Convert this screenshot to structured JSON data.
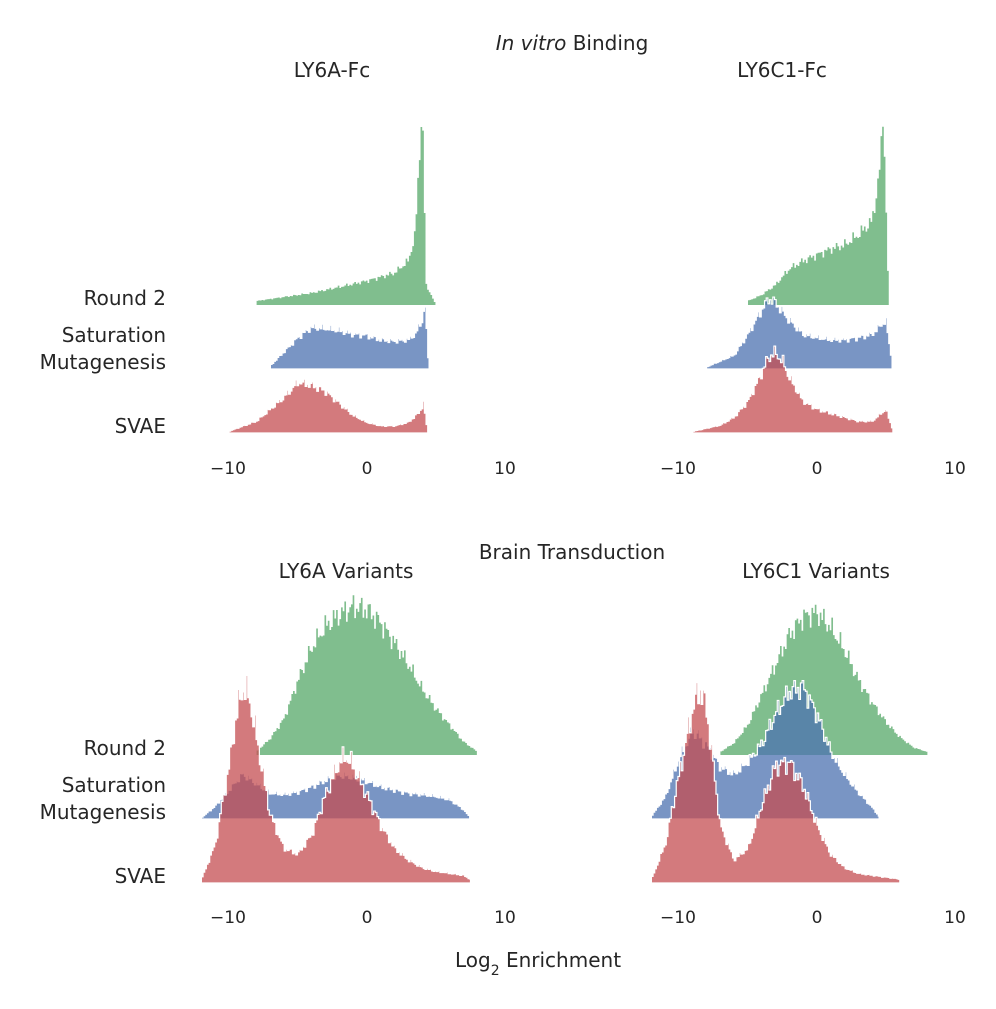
{
  "section_titles": {
    "top_emph": "In vitro",
    "top_rest": " Binding",
    "bottom": "Brain Transduction"
  },
  "x_label": {
    "main": "Log",
    "sub": "2",
    "rest": " Enrichment"
  },
  "row_labels": {
    "round2": "Round 2",
    "satmut_line1": "Saturation",
    "satmut_line2": "Mutagenesis",
    "svae": "SVAE"
  },
  "colors": {
    "round2": "#55a868",
    "satmut": "#4c72b0",
    "svae": "#c44e52"
  },
  "chart_data": [
    {
      "type": "area",
      "title": "LY6A-Fc",
      "xlim": [
        -12,
        12
      ],
      "xticks": [
        "−10",
        "0",
        "10"
      ],
      "series": [
        {
          "name": "Round 2",
          "x": [
            -8,
            -6,
            -4,
            -2,
            0,
            2,
            3,
            3.5,
            3.8,
            4,
            4.3,
            5
          ],
          "y": [
            0.02,
            0.04,
            0.06,
            0.09,
            0.12,
            0.16,
            0.22,
            0.35,
            0.75,
            1.0,
            0.1,
            0.0
          ]
        },
        {
          "name": "Saturation Mutagenesis",
          "x": [
            -7,
            -6,
            -5,
            -4,
            -3,
            -2,
            -1,
            0,
            1,
            2,
            3,
            3.5,
            4,
            4.2,
            4.5
          ],
          "y": [
            0.05,
            0.25,
            0.45,
            0.6,
            0.58,
            0.55,
            0.5,
            0.48,
            0.42,
            0.4,
            0.42,
            0.5,
            0.7,
            0.95,
            0.05
          ]
        },
        {
          "name": "SVAE",
          "x": [
            -10,
            -8,
            -6,
            -5,
            -4,
            -3,
            -2,
            -1,
            0,
            1,
            2,
            3,
            3.8,
            4.1,
            4.4
          ],
          "y": [
            0.03,
            0.2,
            0.6,
            0.85,
            0.8,
            0.7,
            0.5,
            0.3,
            0.18,
            0.12,
            0.12,
            0.18,
            0.35,
            0.5,
            0.05
          ]
        }
      ]
    },
    {
      "type": "area",
      "title": "LY6C1-Fc",
      "xlim": [
        -12,
        12
      ],
      "xticks": [
        "−10",
        "0",
        "10"
      ],
      "series": [
        {
          "name": "Round 2",
          "x": [
            -5,
            -4,
            -3,
            -2,
            -1,
            0,
            1,
            2,
            3,
            4,
            4.3,
            4.6,
            4.8,
            5.2
          ],
          "y": [
            0.02,
            0.05,
            0.1,
            0.18,
            0.22,
            0.25,
            0.28,
            0.3,
            0.35,
            0.42,
            0.55,
            0.7,
            1.0,
            0.02
          ]
        },
        {
          "name": "Saturation Mutagenesis",
          "x": [
            -8,
            -6,
            -5,
            -4,
            -3.5,
            -3,
            -2,
            -1,
            0,
            1,
            2,
            3,
            4,
            5,
            5.5
          ],
          "y": [
            0.03,
            0.2,
            0.5,
            0.85,
            1.0,
            0.95,
            0.7,
            0.5,
            0.45,
            0.42,
            0.42,
            0.45,
            0.5,
            0.7,
            0.05
          ]
        },
        {
          "name": "SVAE",
          "x": [
            -9,
            -7,
            -6,
            -5,
            -4,
            -3.5,
            -3,
            -2.5,
            -2,
            -1,
            0,
            1,
            2,
            3,
            4,
            5,
            5.5
          ],
          "y": [
            0.02,
            0.1,
            0.2,
            0.4,
            0.75,
            0.95,
            1.0,
            0.9,
            0.7,
            0.4,
            0.3,
            0.25,
            0.2,
            0.15,
            0.15,
            0.3,
            0.05
          ]
        }
      ]
    },
    {
      "type": "area",
      "title": "LY6A Variants",
      "xlim": [
        -12,
        12
      ],
      "xticks": [
        "−10",
        "0",
        "10"
      ],
      "series": [
        {
          "name": "Round 2",
          "x": [
            -8,
            -7,
            -6,
            -5,
            -4,
            -3,
            -2,
            -1,
            0,
            1,
            2,
            3,
            4,
            5,
            6,
            7,
            8
          ],
          "y": [
            0.02,
            0.1,
            0.22,
            0.45,
            0.65,
            0.78,
            0.85,
            0.9,
            0.88,
            0.8,
            0.68,
            0.55,
            0.4,
            0.28,
            0.18,
            0.08,
            0.02
          ]
        },
        {
          "name": "Saturation Mutagenesis",
          "x": [
            -12,
            -11,
            -10,
            -9,
            -8,
            -7,
            -6,
            -5,
            -4,
            -3,
            -2,
            -1,
            0,
            1,
            2,
            3,
            4,
            5,
            6,
            7,
            7.5
          ],
          "y": [
            0.02,
            0.2,
            0.45,
            0.7,
            0.55,
            0.4,
            0.38,
            0.42,
            0.5,
            0.6,
            0.68,
            0.65,
            0.58,
            0.5,
            0.45,
            0.4,
            0.38,
            0.35,
            0.3,
            0.15,
            0.02
          ]
        },
        {
          "name": "SVAE",
          "x": [
            -12,
            -11,
            -10,
            -9.5,
            -9,
            -8.5,
            -8,
            -7,
            -6,
            -5,
            -4,
            -3,
            -2,
            -1.5,
            -1,
            0,
            1,
            2,
            3,
            4,
            5,
            6,
            7,
            7.5
          ],
          "y": [
            0.02,
            0.2,
            0.6,
            0.85,
            1.0,
            0.95,
            0.75,
            0.35,
            0.18,
            0.15,
            0.25,
            0.45,
            0.62,
            0.65,
            0.6,
            0.45,
            0.3,
            0.18,
            0.12,
            0.08,
            0.06,
            0.05,
            0.04,
            0.02
          ]
        }
      ]
    },
    {
      "type": "area",
      "title": "LY6C1 Variants",
      "xlim": [
        -12,
        12
      ],
      "xticks": [
        "−10",
        "0",
        "10"
      ],
      "series": [
        {
          "name": "Round 2",
          "x": [
            -7,
            -6,
            -5,
            -4,
            -3,
            -2,
            -1,
            0,
            1,
            2,
            3,
            4,
            5,
            6,
            7,
            8
          ],
          "y": [
            0.02,
            0.08,
            0.2,
            0.4,
            0.6,
            0.8,
            0.92,
            0.95,
            0.85,
            0.7,
            0.5,
            0.35,
            0.22,
            0.12,
            0.05,
            0.02
          ]
        },
        {
          "name": "Saturation Mutagenesis",
          "x": [
            -12,
            -11,
            -10,
            -9,
            -8,
            -7,
            -6,
            -5,
            -4,
            -3,
            -2,
            -1,
            0,
            1,
            2,
            3,
            4,
            4.5
          ],
          "y": [
            0.02,
            0.15,
            0.4,
            0.6,
            0.5,
            0.35,
            0.3,
            0.38,
            0.5,
            0.7,
            0.85,
            0.88,
            0.7,
            0.45,
            0.3,
            0.18,
            0.08,
            0.02
          ]
        },
        {
          "name": "SVAE",
          "x": [
            -12,
            -11,
            -10,
            -9,
            -8.5,
            -8,
            -7.5,
            -7,
            -6,
            -5,
            -4,
            -3,
            -2,
            -1,
            0,
            1,
            2,
            3,
            4,
            5,
            6
          ],
          "y": [
            0.02,
            0.2,
            0.55,
            0.9,
            1.0,
            0.9,
            0.6,
            0.3,
            0.12,
            0.18,
            0.4,
            0.6,
            0.62,
            0.5,
            0.3,
            0.15,
            0.08,
            0.05,
            0.04,
            0.03,
            0.02
          ]
        }
      ]
    }
  ]
}
